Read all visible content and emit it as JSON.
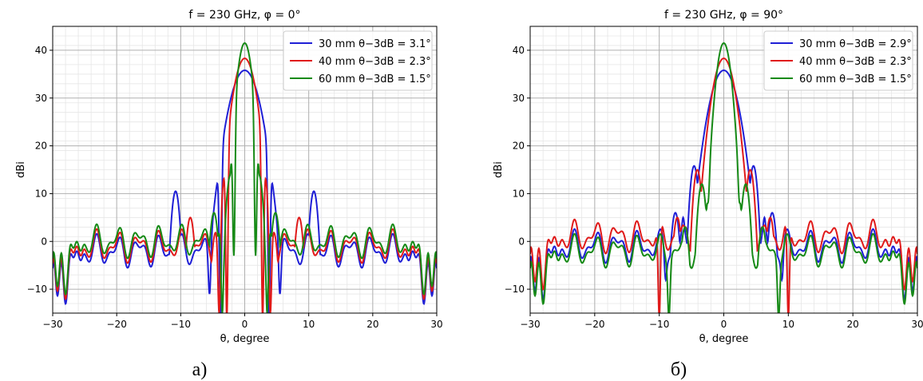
{
  "chart_data": [
    {
      "type": "line",
      "title": "f = 230 GHz, φ = 0°",
      "xlabel": "θ, degree",
      "ylabel": "dBi",
      "xlim": [
        -30,
        30
      ],
      "ylim": [
        -15,
        45
      ],
      "xticks": [
        -30,
        -20,
        -10,
        0,
        10,
        20,
        30
      ],
      "yticks": [
        -10,
        0,
        10,
        20,
        30,
        40
      ],
      "grid": true,
      "legend_position": "top-right",
      "caption": "а)",
      "series": [
        {
          "name": "30 mm θ−3dB = 3.1°",
          "color": "#1f1fd6",
          "peak": 35.8,
          "halfwidth_3db": 1.55,
          "sidelobes": [
            [
              -10.8,
              10.5
            ],
            [
              -1.9,
              2.5
            ]
          ],
          "nulls": [
            [
              -5.5,
              -11
            ],
            [
              -3.8,
              -16
            ],
            [
              3.8,
              -16
            ],
            [
              5.5,
              -11
            ]
          ],
          "floor": -2
        },
        {
          "name": "40 mm θ−3dB = 2.3°",
          "color": "#e01a1a",
          "peak": 38.3,
          "halfwidth_3db": 1.15,
          "sidelobes": [
            [
              -8.5,
              5
            ],
            [
              -4.5,
              2
            ]
          ],
          "nulls": [
            [
              -4,
              -15
            ],
            [
              -2.8,
              -16
            ],
            [
              2.8,
              -16
            ],
            [
              4,
              -15
            ]
          ],
          "floor": -1
        },
        {
          "name": "60 mm θ−3dB = 1.5°",
          "color": "#168a16",
          "peak": 41.5,
          "halfwidth_3db": 0.75,
          "sidelobes": [
            [
              -2.2,
              14
            ],
            [
              -4.8,
              6
            ]
          ],
          "nulls": [
            [
              -1.7,
              -3
            ],
            [
              -3.5,
              -15
            ],
            [
              1.7,
              -3
            ],
            [
              3.5,
              -15
            ]
          ],
          "floor": 0
        }
      ]
    },
    {
      "type": "line",
      "title": "f = 230 GHz, φ = 90°",
      "xlabel": "θ, degree",
      "ylabel": "dBi",
      "xlim": [
        -30,
        30
      ],
      "ylim": [
        -15,
        45
      ],
      "xticks": [
        -30,
        -20,
        -10,
        0,
        10,
        20,
        30
      ],
      "yticks": [
        -10,
        0,
        10,
        20,
        30,
        40
      ],
      "grid": true,
      "legend_position": "top-right",
      "caption": "б)",
      "series": [
        {
          "name": "30 mm θ−3dB = 2.9°",
          "color": "#1f1fd6",
          "peak": 35.8,
          "halfwidth_3db": 1.45,
          "sidelobes": [
            [
              -4.6,
              15.8
            ],
            [
              -7.5,
              6
            ]
          ],
          "nulls": [
            [
              -6.3,
              5
            ],
            [
              -9,
              -8
            ],
            [
              6.3,
              5
            ],
            [
              9,
              -8
            ]
          ],
          "floor": -1
        },
        {
          "name": "40 mm θ−3dB = 2.3°",
          "color": "#e01a1a",
          "peak": 38.3,
          "halfwidth_3db": 1.15,
          "sidelobes": [
            [
              -4.1,
              15
            ],
            [
              -7.2,
              5
            ]
          ],
          "nulls": [
            [
              -6,
              3
            ],
            [
              -10,
              -16
            ],
            [
              6,
              3
            ],
            [
              10,
              -16
            ]
          ],
          "floor": 1
        },
        {
          "name": "60 mm θ−3dB = 1.5°",
          "color": "#168a16",
          "peak": 41.5,
          "halfwidth_3db": 0.75,
          "sidelobes": [
            [
              -3.4,
              12
            ],
            [
              -6,
              3
            ]
          ],
          "nulls": [
            [
              -2.5,
              8
            ],
            [
              -8.5,
              -16
            ],
            [
              2.5,
              8
            ],
            [
              8.5,
              -16
            ]
          ],
          "floor": -2
        }
      ]
    }
  ]
}
